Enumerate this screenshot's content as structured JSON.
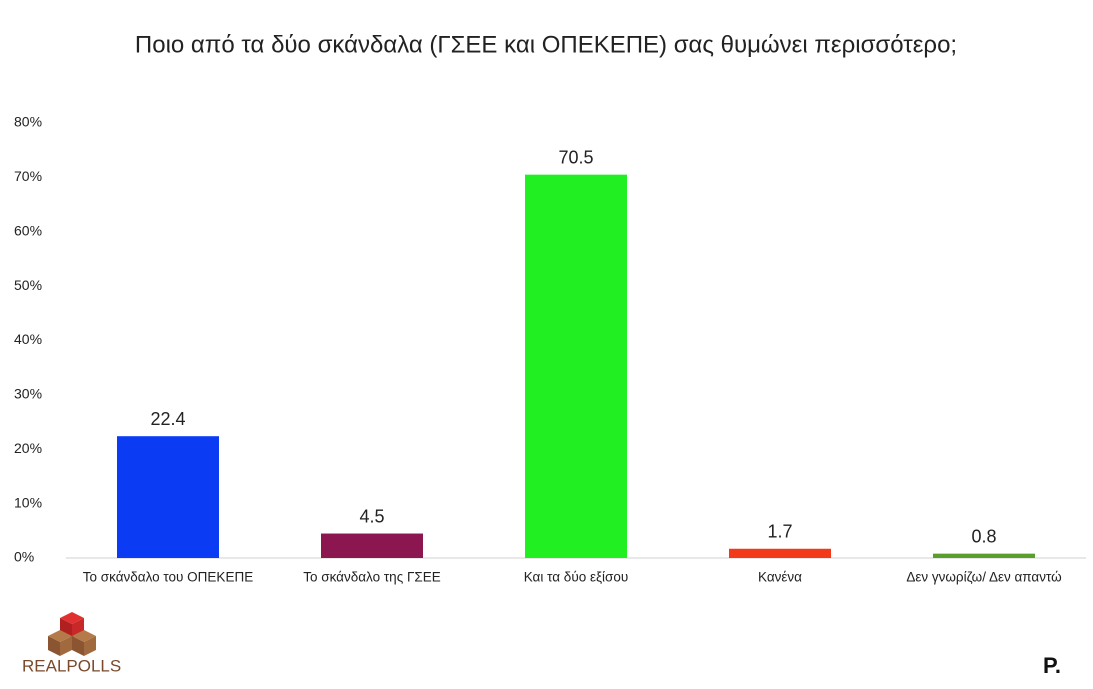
{
  "chart_data": {
    "type": "bar",
    "title": "Ποιο από τα δύο σκάνδαλα (ΓΣΕΕ και ΟΠΕΚΕΠΕ) σας θυμώνει περισσότερο;",
    "categories": [
      "Το σκάνδαλο του ΟΠΕΚΕΠΕ",
      "Το σκάνδαλο της ΓΣΕΕ",
      "Και τα δύο εξίσου",
      "Κανένα",
      "Δεν γνωρίζω/ Δεν απαντώ"
    ],
    "values": [
      22.4,
      4.5,
      70.5,
      1.7,
      0.8
    ],
    "colors": [
      "#0b3cf4",
      "#8c1650",
      "#22ef22",
      "#f2391a",
      "#5a9e2c"
    ],
    "ylim": [
      0,
      80
    ],
    "yticks": [
      {
        "value": 0,
        "label": "0%"
      },
      {
        "value": 10,
        "label": "10%"
      },
      {
        "value": 20,
        "label": "20%"
      },
      {
        "value": 30,
        "label": "30%"
      },
      {
        "value": 40,
        "label": "40%"
      },
      {
        "value": 50,
        "label": "50%"
      },
      {
        "value": 60,
        "label": "60%"
      },
      {
        "value": 70,
        "label": "70%"
      },
      {
        "value": 80,
        "label": "80%"
      }
    ],
    "grid": false,
    "logo": "REALPOLLS",
    "brand": "P."
  }
}
